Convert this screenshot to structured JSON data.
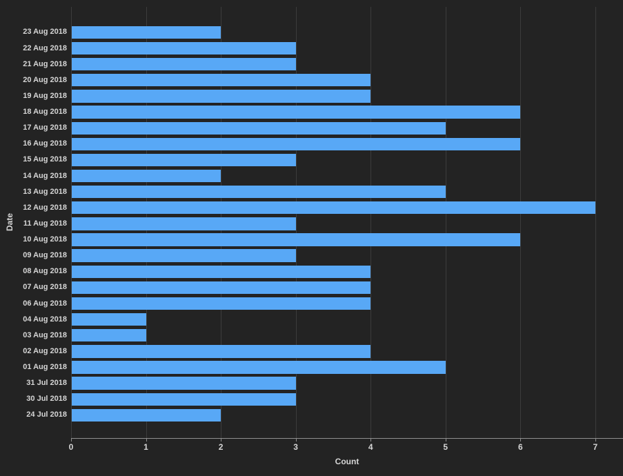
{
  "chart_data": {
    "type": "bar",
    "orientation": "horizontal",
    "title": "",
    "xlabel": "Count",
    "ylabel": "Date",
    "categories": [
      "23 Aug 2018",
      "22 Aug 2018",
      "21 Aug 2018",
      "20 Aug 2018",
      "19 Aug 2018",
      "18 Aug 2018",
      "17 Aug 2018",
      "16 Aug 2018",
      "15 Aug 2018",
      "14 Aug 2018",
      "13 Aug 2018",
      "12 Aug 2018",
      "11 Aug 2018",
      "10 Aug 2018",
      "09 Aug 2018",
      "08 Aug 2018",
      "07 Aug 2018",
      "06 Aug 2018",
      "04 Aug 2018",
      "03 Aug 2018",
      "02 Aug 2018",
      "01 Aug 2018",
      "31 Jul 2018",
      "30 Jul 2018",
      "24 Jul 2018"
    ],
    "values": [
      2,
      3,
      3,
      4,
      4,
      6,
      5,
      6,
      3,
      2,
      5,
      7,
      3,
      6,
      3,
      4,
      4,
      4,
      1,
      1,
      4,
      5,
      3,
      3,
      2
    ],
    "xticks": [
      "0",
      "1",
      "2",
      "3",
      "4",
      "5",
      "6",
      "7"
    ],
    "xlim": [
      0,
      7.37
    ],
    "grid": "vertical",
    "legend": "none",
    "colors": {
      "background": "#232323",
      "bar": "#58a8f6",
      "gridline": "#3c3c3c",
      "axis_line": "#8f8f8f",
      "tick_label": "#d6d6d6",
      "axis_title": "#d6d6d6"
    }
  }
}
